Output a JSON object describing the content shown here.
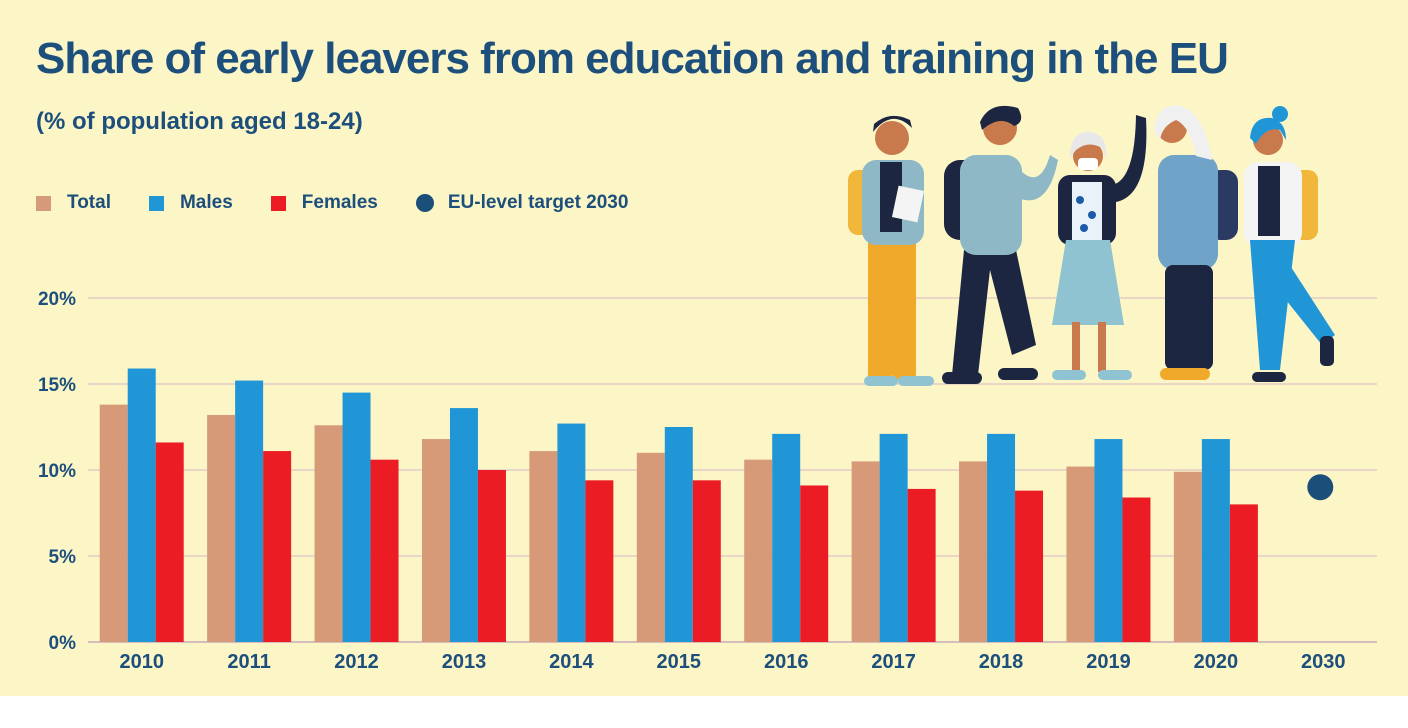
{
  "colors": {
    "background": "#fcf6c7",
    "text": "#1d4f7c",
    "total": "#d69a78",
    "males": "#2196d6",
    "females": "#ec1c24",
    "target": "#1b4f7a",
    "grid": "#d6b6c6"
  },
  "title": "Share of early leavers from education and training in the EU",
  "subtitle": "(% of population aged 18-24)",
  "legend": [
    {
      "label": "Total",
      "color": "#d69a78",
      "shape": "square"
    },
    {
      "label": "Males",
      "color": "#2196d6",
      "shape": "square"
    },
    {
      "label": "Females",
      "color": "#ec1c24",
      "shape": "square"
    },
    {
      "label": "EU-level target 2030",
      "color": "#1b4f7a",
      "shape": "circle"
    }
  ],
  "illustration": {
    "icon": "group-of-young-people-illustration"
  },
  "chart_data": {
    "type": "bar",
    "title": "Share of early leavers from education and training in the EU",
    "subtitle": "(% of population aged 18-24)",
    "xlabel": "",
    "ylabel": "",
    "ylim": [
      0,
      20
    ],
    "yticks": [
      "0%",
      "5%",
      "10%",
      "15%",
      "20%"
    ],
    "grid": true,
    "legend_position": "top-left",
    "categories": [
      "2010",
      "2011",
      "2012",
      "2013",
      "2014",
      "2015",
      "2016",
      "2017",
      "2018",
      "2019",
      "2020",
      "2030"
    ],
    "series": [
      {
        "name": "Total",
        "values": [
          13.8,
          13.2,
          12.6,
          11.8,
          11.1,
          11.0,
          10.6,
          10.5,
          10.5,
          10.2,
          9.9,
          null
        ]
      },
      {
        "name": "Males",
        "values": [
          15.9,
          15.2,
          14.5,
          13.6,
          12.7,
          12.5,
          12.1,
          12.1,
          12.1,
          11.8,
          11.8,
          null
        ]
      },
      {
        "name": "Females",
        "values": [
          11.6,
          11.1,
          10.6,
          10.0,
          9.4,
          9.4,
          9.1,
          8.9,
          8.8,
          8.4,
          8.0,
          null
        ]
      }
    ],
    "target": {
      "name": "EU-level target 2030",
      "category": "2030",
      "value": 9.0
    }
  }
}
